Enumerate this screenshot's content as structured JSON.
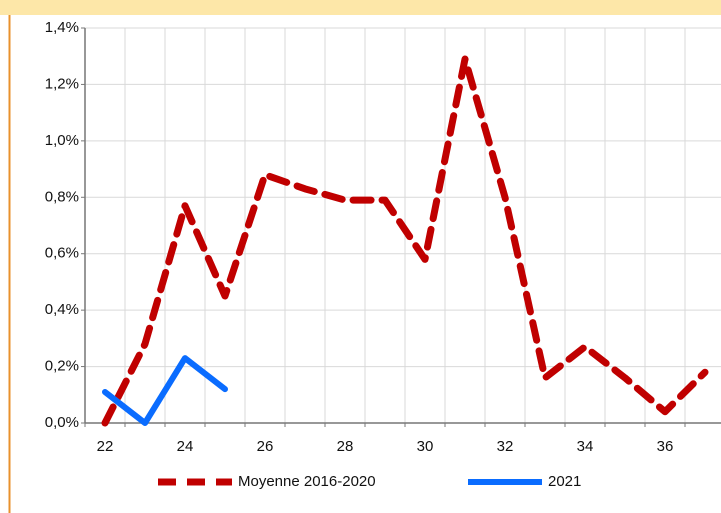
{
  "chart_data": {
    "type": "line",
    "categories": [
      "22",
      null,
      "24",
      null,
      "26",
      null,
      "28",
      null,
      "30",
      null,
      "32",
      null,
      "34",
      null,
      "36",
      null
    ],
    "series": [
      {
        "name": "Moyenne 2016-2020",
        "color": "#c00000",
        "dashed": true,
        "values": [
          0.0,
          0.28,
          0.77,
          0.45,
          0.88,
          0.83,
          0.79,
          0.79,
          0.58,
          1.29,
          0.8,
          0.16,
          0.27,
          0.16,
          0.04,
          0.18
        ]
      },
      {
        "name": "2021",
        "color": "#0a6cff",
        "dashed": false,
        "values": [
          0.11,
          0.0,
          0.23,
          0.12,
          null,
          null,
          null,
          null,
          null,
          null,
          null,
          null,
          null,
          null,
          null,
          null
        ]
      }
    ],
    "ylim": [
      0,
      1.4
    ],
    "yticks": [
      {
        "value": 0,
        "label": "0,0%"
      },
      {
        "value": 0.2,
        "label": "0,2%"
      },
      {
        "value": 0.4,
        "label": "0,4%"
      },
      {
        "value": 0.6,
        "label": "0,6%"
      },
      {
        "value": 0.8,
        "label": "0,8%"
      },
      {
        "value": 1.0,
        "label": "1,0%"
      },
      {
        "value": 1.2,
        "label": "1,2%"
      },
      {
        "value": 1.4,
        "label": "1,4%"
      }
    ],
    "grid": true,
    "legend": "bottom"
  }
}
